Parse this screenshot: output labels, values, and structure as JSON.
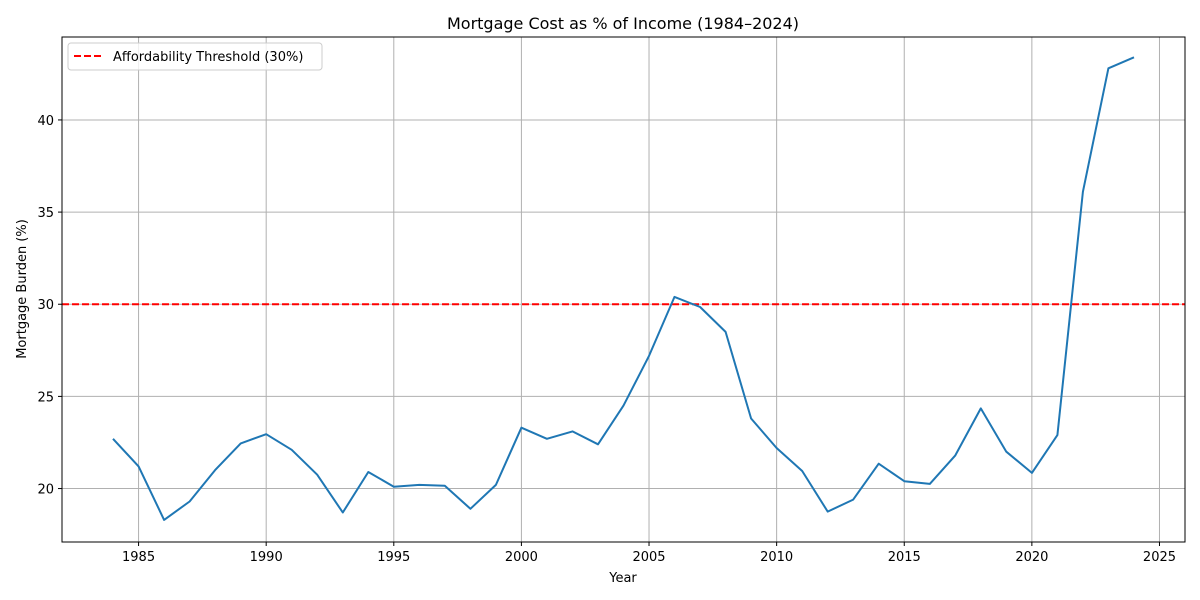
{
  "chart_data": {
    "type": "line",
    "title": "Mortgage Cost as % of Income (1984–2024)",
    "xlabel": "Year",
    "ylabel": "Mortgage Burden (%)",
    "xlim": [
      1982,
      2026
    ],
    "ylim": [
      17.1,
      44.5
    ],
    "xticks": [
      1985,
      1990,
      1995,
      2000,
      2005,
      2010,
      2015,
      2020,
      2025
    ],
    "yticks": [
      20,
      25,
      30,
      35,
      40
    ],
    "grid": true,
    "legend_position": "top-left",
    "threshold": {
      "label": "Affordability Threshold (30%)",
      "value": 30,
      "color": "#ff0000",
      "style": "dashed"
    },
    "series": [
      {
        "color": "#1f77b4",
        "x": [
          1984,
          1985,
          1986,
          1987,
          1988,
          1989,
          1990,
          1991,
          1992,
          1993,
          1994,
          1995,
          1996,
          1997,
          1998,
          1999,
          2000,
          2001,
          2002,
          2003,
          2004,
          2005,
          2006,
          2007,
          2008,
          2009,
          2010,
          2011,
          2012,
          2013,
          2014,
          2015,
          2016,
          2017,
          2018,
          2019,
          2020,
          2021,
          2022,
          2023,
          2024
        ],
        "values": [
          22.7,
          21.2,
          18.3,
          19.3,
          21.0,
          22.45,
          22.95,
          22.1,
          20.75,
          18.7,
          20.9,
          20.1,
          20.2,
          20.15,
          18.9,
          20.2,
          23.3,
          22.7,
          23.1,
          22.4,
          24.5,
          27.2,
          30.4,
          29.85,
          28.5,
          23.8,
          22.2,
          20.95,
          18.75,
          19.4,
          21.35,
          20.4,
          20.25,
          21.8,
          24.35,
          22.0,
          20.85,
          22.9,
          36.1,
          42.8,
          43.4
        ]
      }
    ]
  }
}
